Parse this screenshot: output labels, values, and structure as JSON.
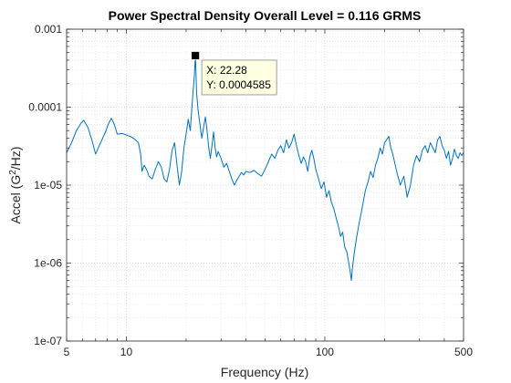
{
  "chart_data": {
    "type": "line",
    "title": "Power Spectral Density  Overall Level =  0.116 GRMS",
    "xlabel": "Frequency (Hz)",
    "ylabel_prefix": "Accel (G",
    "ylabel_sup": "2",
    "ylabel_suffix": "/Hz)",
    "xscale": "log",
    "yscale": "log",
    "xlim": [
      5,
      500
    ],
    "ylim": [
      1e-07,
      0.001
    ],
    "grid": "on (major and minor, dotted)",
    "line_color": "#0072BD",
    "x_ticks": [
      5,
      10,
      100,
      500
    ],
    "x_tick_labels": [
      "5",
      "10",
      "100",
      "500"
    ],
    "y_ticks": [
      1e-07,
      1e-06,
      1e-05,
      0.0001,
      0.001
    ],
    "y_tick_labels": [
      "1e-07",
      "1e-06",
      "1e-05",
      "0.0001",
      "0.001"
    ],
    "datatip": {
      "x": 22.28,
      "y": 0.0004585,
      "x_text": "X: 22.28",
      "y_text": "Y: 0.0004585"
    },
    "series": [
      {
        "values": [
          [
            5.0,
            2.6e-05
          ],
          [
            5.3,
            3.5e-05
          ],
          [
            5.6,
            5e-05
          ],
          [
            5.9,
            6.2e-05
          ],
          [
            6.1,
            6.8e-05
          ],
          [
            6.4,
            5.5e-05
          ],
          [
            6.7,
            3.8e-05
          ],
          [
            7.0,
            2.5e-05
          ],
          [
            7.3,
            3.2e-05
          ],
          [
            7.6,
            4e-05
          ],
          [
            7.9,
            5e-05
          ],
          [
            8.1,
            6e-05
          ],
          [
            8.4,
            7.2e-05
          ],
          [
            8.7,
            6e-05
          ],
          [
            9.0,
            4.5e-05
          ],
          [
            9.5,
            4.6e-05
          ],
          [
            10.0,
            4.4e-05
          ],
          [
            10.5,
            4.2e-05
          ],
          [
            11.0,
            3.9e-05
          ],
          [
            11.5,
            3.5e-05
          ],
          [
            11.8,
            2.5e-05
          ],
          [
            12.0,
            1.5e-05
          ],
          [
            12.3,
            1.8e-05
          ],
          [
            12.7,
            1.55e-05
          ],
          [
            13.0,
            1.3e-05
          ],
          [
            13.5,
            1.2e-05
          ],
          [
            14.0,
            1.6e-05
          ],
          [
            14.5,
            2e-05
          ],
          [
            15.0,
            1.7e-05
          ],
          [
            15.5,
            1.2e-05
          ],
          [
            16.0,
            1.1e-05
          ],
          [
            16.5,
            1.6e-05
          ],
          [
            17.0,
            2.8e-05
          ],
          [
            17.5,
            3.5e-05
          ],
          [
            18.0,
            1.8e-05
          ],
          [
            18.5,
            1e-05
          ],
          [
            19.0,
            1.5e-05
          ],
          [
            19.5,
            3e-05
          ],
          [
            20.0,
            4.5e-05
          ],
          [
            20.5,
            7e-05
          ],
          [
            21.0,
            5e-05
          ],
          [
            21.5,
            0.00012
          ],
          [
            22.0,
            0.00025
          ],
          [
            22.28,
            0.0004585
          ],
          [
            22.6,
            0.00015
          ],
          [
            23.0,
            9e-05
          ],
          [
            23.5,
            6e-05
          ],
          [
            24.0,
            4e-05
          ],
          [
            24.5,
            5.5e-05
          ],
          [
            25.0,
            7.5e-05
          ],
          [
            25.5,
            5e-05
          ],
          [
            26.0,
            3e-05
          ],
          [
            26.5,
            2.2e-05
          ],
          [
            27.0,
            3.2e-05
          ],
          [
            27.5,
            4.8e-05
          ],
          [
            28.0,
            3e-05
          ],
          [
            28.5,
            2.3e-05
          ],
          [
            29.0,
            2.7e-05
          ],
          [
            30.0,
            2.2e-05
          ],
          [
            31.0,
            1.7e-05
          ],
          [
            32.0,
            1.9e-05
          ],
          [
            33.0,
            1.5e-05
          ],
          [
            34.0,
            1.2e-05
          ],
          [
            35.0,
            1e-05
          ],
          [
            36.0,
            1.15e-05
          ],
          [
            37.0,
            1.3e-05
          ],
          [
            38.0,
            1.45e-05
          ],
          [
            39.0,
            1.35e-05
          ],
          [
            40.0,
            1.5e-05
          ],
          [
            42.0,
            1.45e-05
          ],
          [
            44.0,
            1.55e-05
          ],
          [
            46.0,
            1.4e-05
          ],
          [
            48.0,
            1.3e-05
          ],
          [
            50.0,
            1.6e-05
          ],
          [
            52.0,
            2e-05
          ],
          [
            54.0,
            2.5e-05
          ],
          [
            56.0,
            2.2e-05
          ],
          [
            58.0,
            2.8e-05
          ],
          [
            60.0,
            3.2e-05
          ],
          [
            62.0,
            2.6e-05
          ],
          [
            64.0,
            3.8e-05
          ],
          [
            66.0,
            3e-05
          ],
          [
            68.0,
            3.5e-05
          ],
          [
            70.0,
            4.5e-05
          ],
          [
            72.0,
            3.2e-05
          ],
          [
            74.0,
            2.4e-05
          ],
          [
            76.0,
            1.9e-05
          ],
          [
            78.0,
            2.3e-05
          ],
          [
            80.0,
            2e-05
          ],
          [
            82.0,
            1.5e-05
          ],
          [
            84.0,
            2.3e-05
          ],
          [
            86.0,
            2.8e-05
          ],
          [
            88.0,
            2.2e-05
          ],
          [
            90.0,
            1.6e-05
          ],
          [
            93.0,
            1.2e-05
          ],
          [
            96.0,
            9e-06
          ],
          [
            99.0,
            1.1e-05
          ],
          [
            102.0,
            7e-06
          ],
          [
            105.0,
            8.5e-06
          ],
          [
            108.0,
            6e-06
          ],
          [
            111.0,
            5e-06
          ],
          [
            114.0,
            3.8e-06
          ],
          [
            117.0,
            3e-06
          ],
          [
            120.0,
            2.2e-06
          ],
          [
            123.0,
            2.5e-06
          ],
          [
            126.0,
            1.6e-06
          ],
          [
            129.0,
            1.4e-06
          ],
          [
            132.0,
            1e-06
          ],
          [
            134.0,
            8e-07
          ],
          [
            136.0,
            6e-07
          ],
          [
            138.0,
            9e-07
          ],
          [
            141.0,
            1.4e-06
          ],
          [
            144.0,
            2e-06
          ],
          [
            148.0,
            3e-06
          ],
          [
            152.0,
            4.2e-06
          ],
          [
            156.0,
            6e-06
          ],
          [
            160.0,
            8.5e-06
          ],
          [
            165.0,
            1.1e-05
          ],
          [
            170.0,
            1.5e-05
          ],
          [
            175.0,
            1.25e-05
          ],
          [
            180.0,
            1.8e-05
          ],
          [
            185.0,
            2.2e-05
          ],
          [
            190.0,
            3e-05
          ],
          [
            195.0,
            2.5e-05
          ],
          [
            200.0,
            3.5e-05
          ],
          [
            210.0,
            4.2e-05
          ],
          [
            215.0,
            3e-05
          ],
          [
            220.0,
            2.5e-05
          ],
          [
            230.0,
            1.5e-05
          ],
          [
            240.0,
            1e-05
          ],
          [
            250.0,
            1.3e-05
          ],
          [
            260.0,
            7e-06
          ],
          [
            270.0,
            1e-05
          ],
          [
            280.0,
            1.8e-05
          ],
          [
            290.0,
            2.4e-05
          ],
          [
            300.0,
            2e-05
          ],
          [
            310.0,
            2.8e-05
          ],
          [
            320.0,
            3.2e-05
          ],
          [
            330.0,
            2.6e-05
          ],
          [
            340.0,
            3.5e-05
          ],
          [
            350.0,
            3e-05
          ],
          [
            360.0,
            2.6e-05
          ],
          [
            370.0,
            3.8e-05
          ],
          [
            380.0,
            4.2e-05
          ],
          [
            390.0,
            3.2e-05
          ],
          [
            400.0,
            2.8e-05
          ],
          [
            410.0,
            2.2e-05
          ],
          [
            420.0,
            2.7e-05
          ],
          [
            430.0,
            1.8e-05
          ],
          [
            440.0,
            2.2e-05
          ],
          [
            450.0,
            2.9e-05
          ],
          [
            460.0,
            2.4e-05
          ],
          [
            470.0,
            2.2e-05
          ],
          [
            480.0,
            2.6e-05
          ],
          [
            490.0,
            2.4e-05
          ],
          [
            500.0,
            2.6e-05
          ]
        ]
      }
    ]
  }
}
